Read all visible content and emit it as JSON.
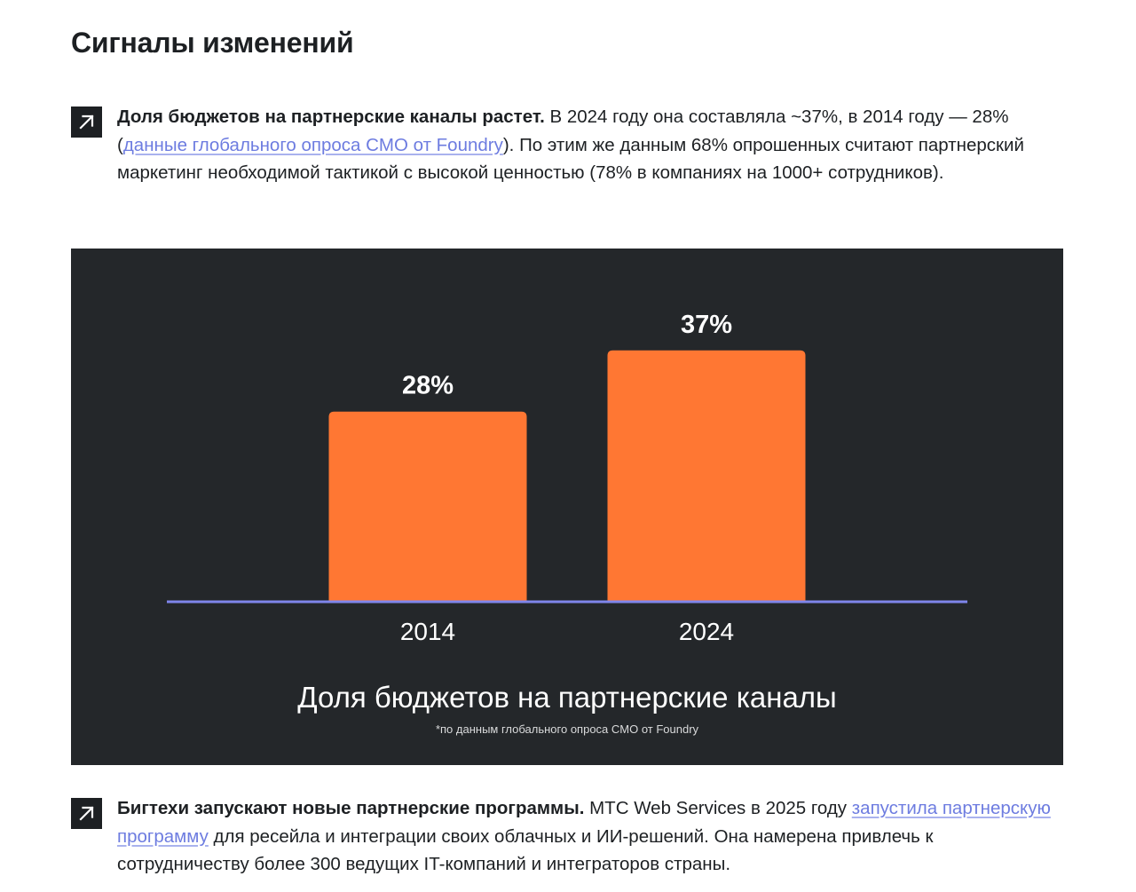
{
  "page_title": "Сигналы изменений",
  "paragraph1": {
    "icon": "arrow-up-right-icon",
    "lead": "Доля бюджетов на партнерские каналы растет.",
    "text_before_link": " В 2024 году она составляла ~37%, в 2014 году — 28% (",
    "link_text": "данные глобального опроса CMO от Foundry",
    "text_after_link": "). По этим же данным 68% опрошенных считают партнерский маркетинг необходимой тактикой с высокой ценностью (78% в компаниях на 1000+ сотрудников)."
  },
  "paragraph2": {
    "icon": "arrow-up-right-icon",
    "lead": "Бигтехи запускают новые партнерские программы.",
    "text_before_link": " МТС Web Services в 2025 году ",
    "link_text": "запустила партнерскую программу",
    "text_after_link": " для ресейла и интеграции своих облачных и ИИ-решений. Она намерена привлечь к сотрудничеству более 300 ведущих IT-компаний и интеграторов страны."
  },
  "colors": {
    "bar": "#ff7733",
    "axis": "#7f86ea",
    "panel": "#24272a",
    "link": "#6d7ce0"
  },
  "chart_data": {
    "type": "bar",
    "title": "Доля бюджетов на партнерские каналы",
    "subtitle": "*по данным глобального опроса CMO от Foundry",
    "categories": [
      "2014",
      "2024"
    ],
    "values": [
      28,
      37
    ],
    "value_labels": [
      "28%",
      "37%"
    ],
    "unit": "%",
    "xlabel": "",
    "ylabel": "",
    "ylim": [
      0,
      52
    ],
    "grid": false,
    "legend": "none"
  }
}
